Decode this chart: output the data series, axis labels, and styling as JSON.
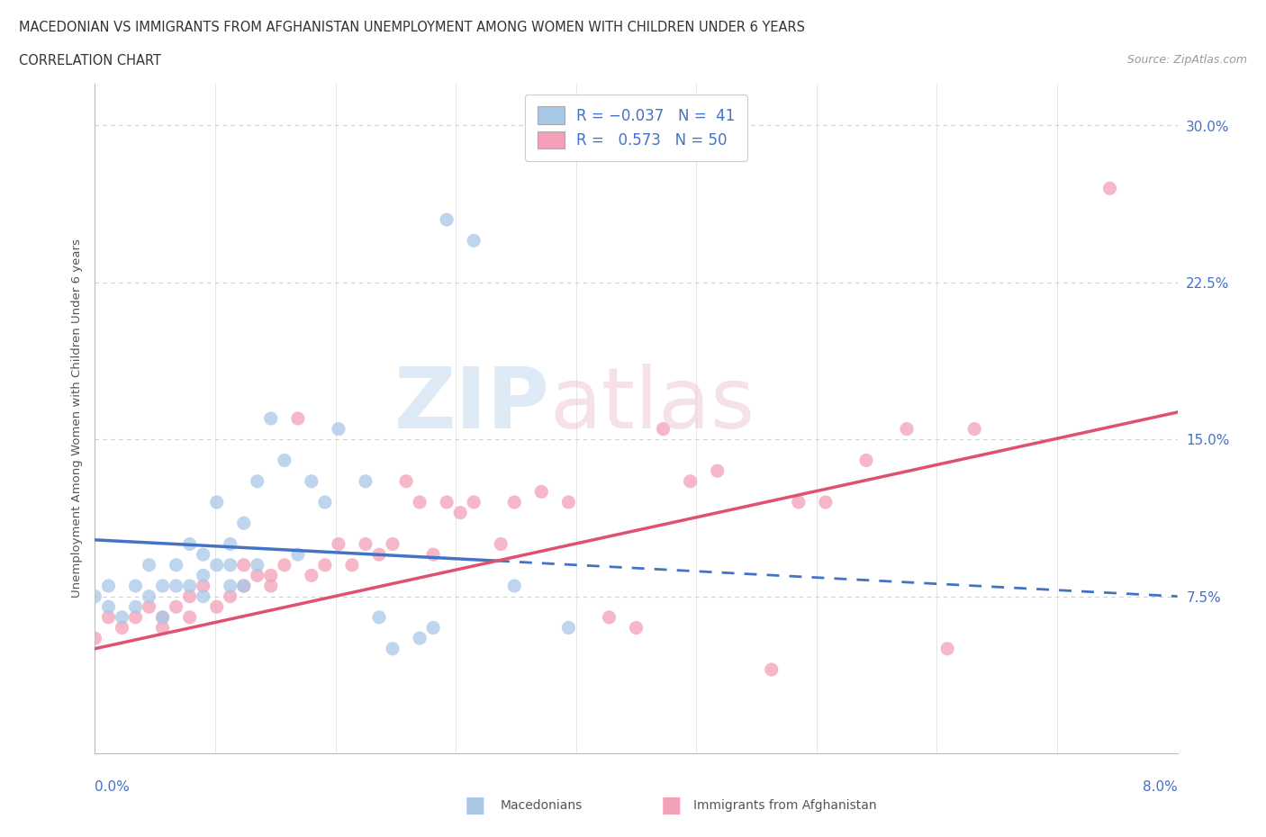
{
  "title_line1": "MACEDONIAN VS IMMIGRANTS FROM AFGHANISTAN UNEMPLOYMENT AMONG WOMEN WITH CHILDREN UNDER 6 YEARS",
  "title_line2": "CORRELATION CHART",
  "source": "Source: ZipAtlas.com",
  "color_mac": "#a8c8e8",
  "color_afg": "#f4a0b8",
  "color_mac_line": "#4472c4",
  "color_afg_line": "#e05070",
  "color_text_blue": "#4472c4",
  "gridline_color": "#d0d0d0",
  "background_color": "#ffffff",
  "xmin": 0.0,
  "xmax": 0.08,
  "ymin": 0.0,
  "ymax": 0.32,
  "mac_line_x0": 0.0,
  "mac_line_x1": 0.08,
  "mac_line_y0": 0.102,
  "mac_line_y1": 0.075,
  "afg_line_x0": 0.0,
  "afg_line_x1": 0.08,
  "afg_line_y0": 0.05,
  "afg_line_y1": 0.163,
  "mac_scatter_x": [
    0.0,
    0.001,
    0.001,
    0.002,
    0.003,
    0.003,
    0.004,
    0.004,
    0.005,
    0.005,
    0.006,
    0.006,
    0.007,
    0.007,
    0.008,
    0.008,
    0.008,
    0.009,
    0.009,
    0.01,
    0.01,
    0.01,
    0.011,
    0.011,
    0.012,
    0.012,
    0.013,
    0.014,
    0.015,
    0.016,
    0.017,
    0.018,
    0.02,
    0.021,
    0.022,
    0.024,
    0.025,
    0.026,
    0.028,
    0.031,
    0.035
  ],
  "mac_scatter_y": [
    0.075,
    0.07,
    0.08,
    0.065,
    0.07,
    0.08,
    0.075,
    0.09,
    0.065,
    0.08,
    0.08,
    0.09,
    0.08,
    0.1,
    0.075,
    0.085,
    0.095,
    0.09,
    0.12,
    0.08,
    0.09,
    0.1,
    0.08,
    0.11,
    0.09,
    0.13,
    0.16,
    0.14,
    0.095,
    0.13,
    0.12,
    0.155,
    0.13,
    0.065,
    0.05,
    0.055,
    0.06,
    0.255,
    0.245,
    0.08,
    0.06
  ],
  "afg_scatter_x": [
    0.0,
    0.001,
    0.002,
    0.003,
    0.004,
    0.005,
    0.005,
    0.006,
    0.007,
    0.007,
    0.008,
    0.009,
    0.01,
    0.011,
    0.011,
    0.012,
    0.013,
    0.013,
    0.014,
    0.015,
    0.016,
    0.017,
    0.018,
    0.019,
    0.02,
    0.021,
    0.022,
    0.023,
    0.024,
    0.025,
    0.026,
    0.027,
    0.028,
    0.03,
    0.031,
    0.033,
    0.035,
    0.038,
    0.04,
    0.042,
    0.044,
    0.046,
    0.05,
    0.052,
    0.054,
    0.057,
    0.06,
    0.063,
    0.065,
    0.075
  ],
  "afg_scatter_y": [
    0.055,
    0.065,
    0.06,
    0.065,
    0.07,
    0.06,
    0.065,
    0.07,
    0.065,
    0.075,
    0.08,
    0.07,
    0.075,
    0.08,
    0.09,
    0.085,
    0.085,
    0.08,
    0.09,
    0.16,
    0.085,
    0.09,
    0.1,
    0.09,
    0.1,
    0.095,
    0.1,
    0.13,
    0.12,
    0.095,
    0.12,
    0.115,
    0.12,
    0.1,
    0.12,
    0.125,
    0.12,
    0.065,
    0.06,
    0.155,
    0.13,
    0.135,
    0.04,
    0.12,
    0.12,
    0.14,
    0.155,
    0.05,
    0.155,
    0.27
  ]
}
